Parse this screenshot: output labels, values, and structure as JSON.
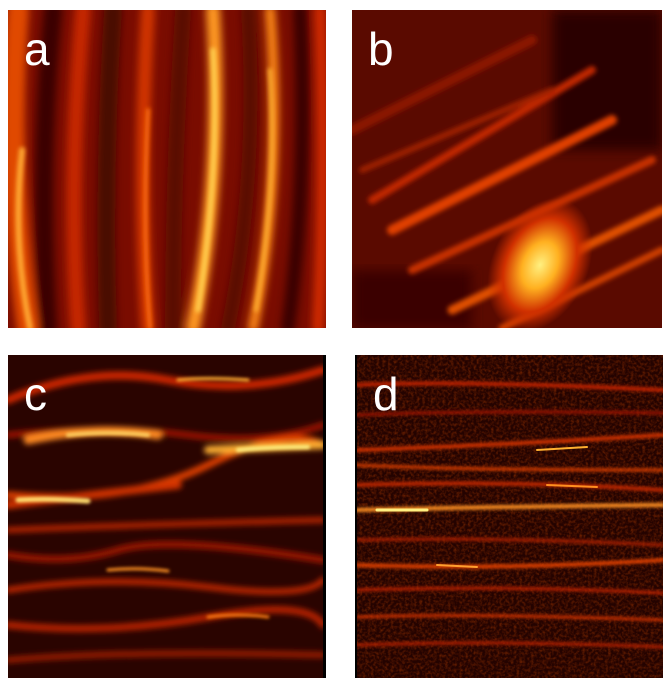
{
  "panels": [
    {
      "id": "a",
      "label": "a"
    },
    {
      "id": "b",
      "label": "b"
    },
    {
      "id": "c",
      "label": "c"
    },
    {
      "id": "d",
      "label": "d"
    }
  ],
  "colormap": {
    "dark": "#2a0500",
    "mid": "#c01800",
    "bright": "#ff8a1a",
    "peak": "#fff070"
  }
}
